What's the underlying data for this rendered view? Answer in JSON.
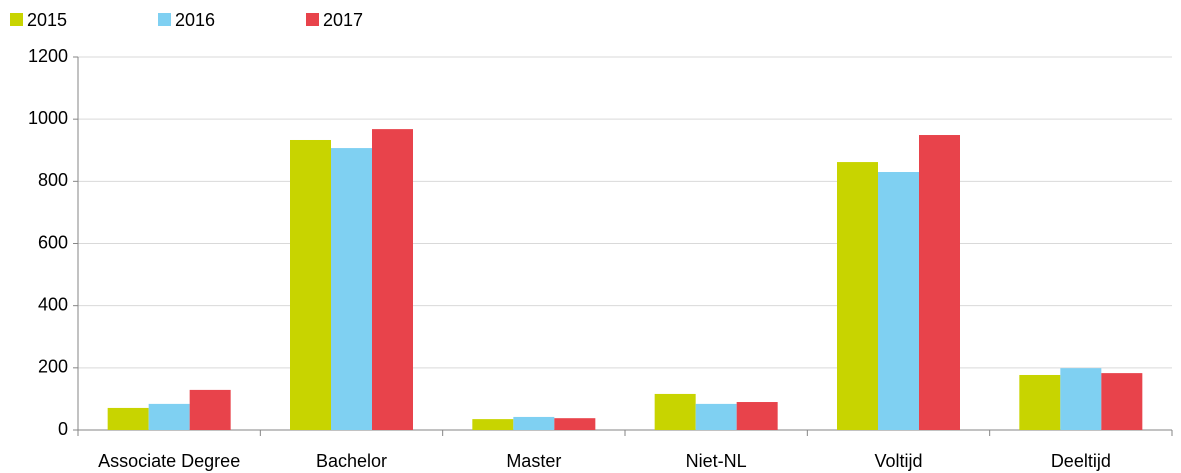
{
  "chart_data": {
    "type": "bar",
    "categories": [
      "Associate Degree",
      "Bachelor",
      "Master",
      "Niet-NL",
      "Voltijd",
      "Deeltijd"
    ],
    "series": [
      {
        "name": "2015",
        "color": "#c8d400",
        "values": [
          71,
          933,
          35,
          116,
          862,
          177
        ]
      },
      {
        "name": "2016",
        "color": "#7fd0f2",
        "values": [
          84,
          907,
          42,
          84,
          830,
          199
        ]
      },
      {
        "name": "2017",
        "color": "#e8434b",
        "values": [
          129,
          968,
          38,
          90,
          949,
          183
        ]
      }
    ],
    "ylim": [
      0,
      1200
    ],
    "yticks": [
      0,
      200,
      400,
      600,
      800,
      1000,
      1200
    ],
    "grid": true,
    "legend": "top-left"
  }
}
